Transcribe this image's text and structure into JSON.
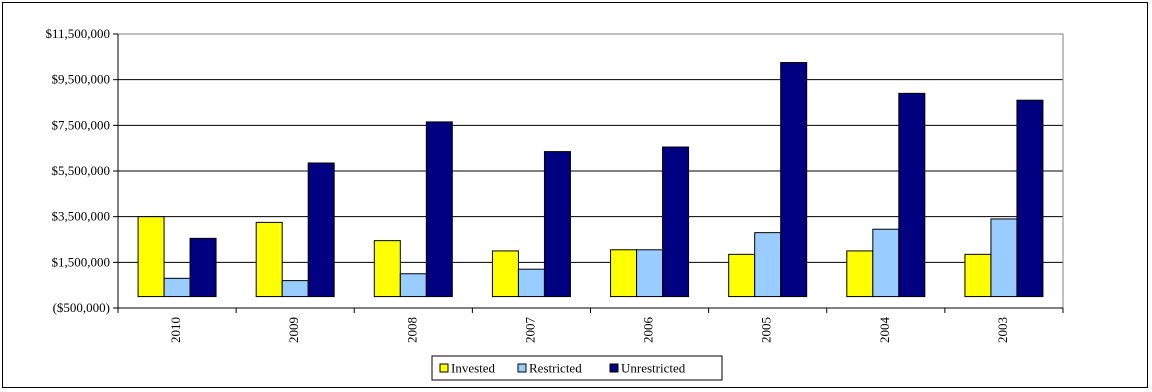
{
  "chart_data": {
    "type": "bar",
    "title": "",
    "xlabel": "",
    "ylabel": "",
    "categories": [
      "2010",
      "2009",
      "2008",
      "2007",
      "2006",
      "2005",
      "2004",
      "2003"
    ],
    "ylim": [
      -500000,
      11500000
    ],
    "yticks": [
      -500000,
      1500000,
      3500000,
      5500000,
      7500000,
      9500000,
      11500000
    ],
    "ytick_labels": [
      "($500,000)",
      "$1,500,000",
      "$3,500,000",
      "$5,500,000",
      "$7,500,000",
      "$9,500,000",
      "$11,500,000"
    ],
    "grid": true,
    "legend_position": "bottom",
    "series": [
      {
        "name": "Invested",
        "color": "#FFFF00",
        "values": [
          3500000,
          3250000,
          2450000,
          2000000,
          2050000,
          1850000,
          2000000,
          1850000
        ]
      },
      {
        "name": "Restricted",
        "color": "#99CCFF",
        "values": [
          800000,
          700000,
          1000000,
          1200000,
          2050000,
          2800000,
          2950000,
          3400000
        ]
      },
      {
        "name": "Unrestricted",
        "color": "#000080",
        "values": [
          2550000,
          5850000,
          7650000,
          6350000,
          6550000,
          10250000,
          8900000,
          8600000
        ]
      }
    ]
  }
}
